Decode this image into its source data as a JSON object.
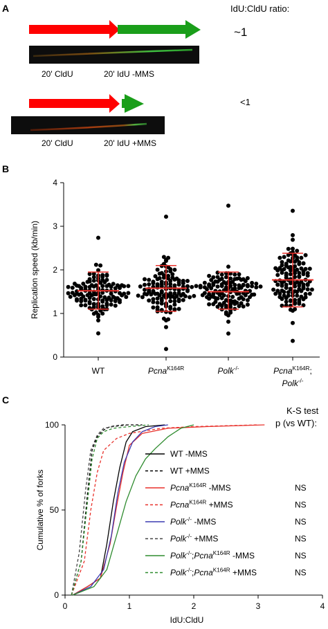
{
  "panelA": {
    "letter": "A",
    "ratio_header": "IdU:CldU ratio:",
    "row1": {
      "label_left": "20' CldU",
      "label_right": "20' IdU -MMS",
      "ratio": "~1"
    },
    "row2": {
      "label_left": "20' CldU",
      "label_right": "20' IdU +MMS",
      "ratio": "<1"
    },
    "colors": {
      "cldu": "#ff0000",
      "idu": "#1a9e1a",
      "fiber_bg": "#0d0d0d"
    }
  },
  "panelB": {
    "letter": "B",
    "chart_data": {
      "type": "scatter",
      "ylabel": "Replication speed (kb/min)",
      "ylim": [
        0,
        4
      ],
      "yticks": [
        "0",
        "1",
        "2",
        "3",
        "4"
      ],
      "categories": [
        {
          "name": "WT",
          "sup": "",
          "line2": ""
        },
        {
          "name": "Pcna",
          "sup": "K164R",
          "line2": ""
        },
        {
          "name": "Polk",
          "sup": "-/-",
          "line2": ""
        },
        {
          "name": "Pcna",
          "sup": "K164R",
          "name_suffix": ";",
          "line2": "Polk",
          "line2_sup": "-/-"
        }
      ],
      "summary": [
        {
          "mean": 1.52,
          "sd_low": 1.1,
          "sd_high": 1.95,
          "max": 2.72,
          "min": 0.55
        },
        {
          "mean": 1.58,
          "sd_low": 1.05,
          "sd_high": 2.1,
          "max": 3.22,
          "min": 0.2
        },
        {
          "mean": 1.5,
          "sd_low": 1.1,
          "sd_high": 1.95,
          "max": 3.48,
          "min": 0.55
        },
        {
          "mean": 1.77,
          "sd_low": 1.15,
          "sd_high": 2.38,
          "max": 3.35,
          "min": 0.35
        }
      ],
      "mean_color": "#e8302a",
      "dot_color": "#000000"
    }
  },
  "panelC": {
    "letter": "C",
    "chart_data": {
      "type": "line",
      "xlabel": "IdU:CldU",
      "ylabel": "Cumulative % of forks",
      "xlim": [
        0,
        4
      ],
      "ylim": [
        0,
        100
      ],
      "xticks": [
        "0",
        "1",
        "2",
        "3",
        "4"
      ],
      "yticks": [
        "0",
        "50",
        "100"
      ],
      "test_header_line1": "K-S test",
      "test_header_line2": "p (vs WT):",
      "series": [
        {
          "name": "WT -MMS",
          "color": "#000000",
          "dash": false,
          "p": "",
          "x": [
            0.12,
            0.35,
            0.55,
            0.65,
            0.75,
            0.85,
            0.95,
            1.05,
            1.25,
            1.55
          ],
          "y": [
            0,
            5,
            10,
            30,
            55,
            75,
            90,
            96,
            99,
            100
          ]
        },
        {
          "name": "WT +MMS",
          "color": "#000000",
          "dash": true,
          "p": "",
          "x": [
            0.1,
            0.25,
            0.35,
            0.42,
            0.5,
            0.6,
            0.7,
            0.9,
            1.2
          ],
          "y": [
            0,
            20,
            60,
            85,
            93,
            97,
            99,
            100,
            100
          ]
        },
        {
          "name": "Pcna",
          "sup": "K164R",
          "suffix": " -MMS",
          "color": "#e8302a",
          "dash": false,
          "p": "NS",
          "x": [
            0.12,
            0.35,
            0.55,
            0.7,
            0.8,
            0.9,
            1.0,
            1.2,
            1.6,
            2.2,
            3.1
          ],
          "y": [
            0,
            5,
            10,
            30,
            52,
            72,
            88,
            95,
            98,
            99,
            100
          ]
        },
        {
          "name": "Pcna",
          "sup": "K164R",
          "suffix": " +MMS",
          "color": "#e8302a",
          "dash": true,
          "p": "NS",
          "x": [
            0.1,
            0.3,
            0.4,
            0.5,
            0.6,
            0.8,
            1.0,
            1.5,
            2.0,
            3.0
          ],
          "y": [
            0,
            20,
            50,
            72,
            85,
            92,
            95,
            98,
            99,
            100
          ]
        },
        {
          "name": "Polk",
          "sup": "-/-",
          "suffix": " -MMS",
          "color": "#3a3ab0",
          "dash": false,
          "p": "NS",
          "x": [
            0.12,
            0.4,
            0.6,
            0.72,
            0.82,
            0.92,
            1.05,
            1.2,
            1.4,
            1.6
          ],
          "y": [
            0,
            5,
            15,
            35,
            60,
            78,
            90,
            96,
            99,
            100
          ]
        },
        {
          "name": "Polk",
          "sup": "-/-",
          "suffix": " +MMS",
          "color": "#444444",
          "dash": true,
          "p": "NS",
          "x": [
            0.1,
            0.22,
            0.32,
            0.4,
            0.5,
            0.6,
            0.75,
            1.0
          ],
          "y": [
            0,
            25,
            62,
            85,
            94,
            98,
            99,
            100
          ]
        },
        {
          "name": "Polk",
          "sup": "-/-",
          "name2": ";Pcna",
          "sup2": "K164R",
          "suffix": " -MMS",
          "color": "#2e8b2e",
          "dash": false,
          "p": "NS",
          "x": [
            0.12,
            0.45,
            0.65,
            0.8,
            0.95,
            1.1,
            1.25,
            1.4,
            1.6,
            1.8,
            2.0
          ],
          "y": [
            0,
            5,
            15,
            35,
            55,
            70,
            80,
            86,
            93,
            98,
            100
          ]
        },
        {
          "name": "Polk",
          "sup": "-/-",
          "name2": ";Pcna",
          "sup2": "K164R",
          "suffix": " +MMS",
          "color": "#2e8b2e",
          "dash": true,
          "p": "NS",
          "x": [
            0.1,
            0.25,
            0.35,
            0.42,
            0.5,
            0.6,
            0.75,
            1.0,
            1.3
          ],
          "y": [
            0,
            20,
            55,
            80,
            92,
            96,
            98,
            99,
            100
          ]
        }
      ]
    }
  }
}
